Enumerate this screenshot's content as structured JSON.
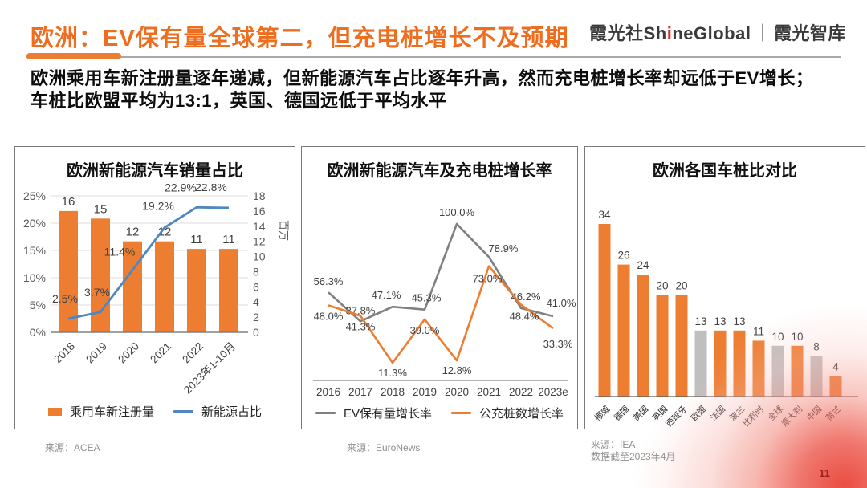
{
  "header": {
    "title": "欧洲：EV保有量全球第二，但充电桩增长不及预期",
    "logo": {
      "cn1": "霞光社",
      "en_pre": "Sh",
      "en_i": "i",
      "en_post": "neGlobal",
      "sep": "｜",
      "cn2": "霞光智库"
    }
  },
  "subtitle": {
    "line1": "欧洲乘用车新注册量逐年递减，但新能源汽车占比逐年升高，然而充电桩增长率却远低于EV增长；",
    "line2": "车桩比欧盟平均为13:1，英国、德国远低于平均水平"
  },
  "colors": {
    "title_orange": "#ed6e1f",
    "bar_orange": "#ed7d31",
    "bar_gray": "#bfbfbf",
    "line_blue": "#4f87be",
    "line_gray": "#808080",
    "page_red": "#9e211c"
  },
  "chart_data": [
    {
      "type": "bar",
      "title": "欧洲新能源汽车销量占比",
      "categories": [
        "2018",
        "2019",
        "2020",
        "2021",
        "2022",
        "2023年1-10月"
      ],
      "series": [
        {
          "name": "乘用车新注册量",
          "kind": "bar",
          "axis": "right",
          "color": "#ed7d31",
          "values": [
            16,
            15,
            12,
            12,
            11,
            11
          ]
        },
        {
          "name": "新能源占比",
          "kind": "line",
          "axis": "left",
          "color": "#4f87be",
          "values": [
            2.5,
            3.7,
            11.4,
            19.2,
            22.9,
            22.8
          ],
          "value_labels": [
            "2.5%",
            "3.7%",
            "11.4%",
            "19.2%",
            "22.9%",
            "22.8%"
          ]
        }
      ],
      "left_axis": {
        "min": 0,
        "max": 25,
        "ticks": [
          "0%",
          "5%",
          "10%",
          "15%",
          "20%",
          "25%"
        ]
      },
      "right_axis": {
        "min": 0,
        "max": 18,
        "ticks": [
          0,
          2,
          4,
          6,
          8,
          10,
          12,
          14,
          16,
          18
        ],
        "unit": "百万"
      },
      "grid": true,
      "legend_position": "bottom"
    },
    {
      "type": "line",
      "title": "欧洲新能源汽车及充电桩增长率",
      "categories": [
        "2016",
        "2017",
        "2018",
        "2019",
        "2020",
        "2021",
        "2022",
        "2023e"
      ],
      "series": [
        {
          "name": "EV保有量增长率",
          "color": "#808080",
          "values": [
            56.3,
            37.8,
            47.1,
            45.3,
            100.0,
            78.9,
            46.2,
            41.0
          ],
          "value_labels": [
            "56.3%",
            "37.8%",
            "47.1%",
            "45.3%",
            "100.0%",
            "78.9%",
            "46.2%",
            "41.0%"
          ]
        },
        {
          "name": "公充桩数增长率",
          "color": "#ed7d31",
          "values": [
            48.0,
            41.3,
            11.3,
            39.0,
            12.8,
            73.0,
            48.4,
            33.3
          ],
          "value_labels": [
            "48.0%",
            "41.3%",
            "11.3%",
            "39.0%",
            "12.8%",
            "73.0%",
            "48.4%",
            "33.3%"
          ]
        }
      ],
      "ylim": [
        0,
        100
      ],
      "grid": false,
      "legend_position": "bottom"
    },
    {
      "type": "bar",
      "title": "欧洲各国车桩比对比",
      "categories": [
        "挪威",
        "德国",
        "美国",
        "英国",
        "西班牙",
        "欧盟",
        "法国",
        "波兰",
        "比利时",
        "全球",
        "意大利",
        "中国",
        "荷兰"
      ],
      "values": [
        34,
        26,
        24,
        20,
        20,
        13,
        13,
        13,
        11,
        10,
        10,
        8,
        4
      ],
      "bar_colors": {
        "default": "#ed7d31",
        "gray": "#bfbfbf",
        "gray_indices": [
          5,
          9,
          11
        ]
      },
      "ylim": [
        0,
        34
      ],
      "grid": false
    }
  ],
  "footer": {
    "sources": [
      {
        "label": "来源：ACEA"
      },
      {
        "label": "来源：EuroNews"
      },
      {
        "label": "来源：IEA",
        "note": "数据截至2023年4月"
      }
    ],
    "page_number": "11"
  }
}
